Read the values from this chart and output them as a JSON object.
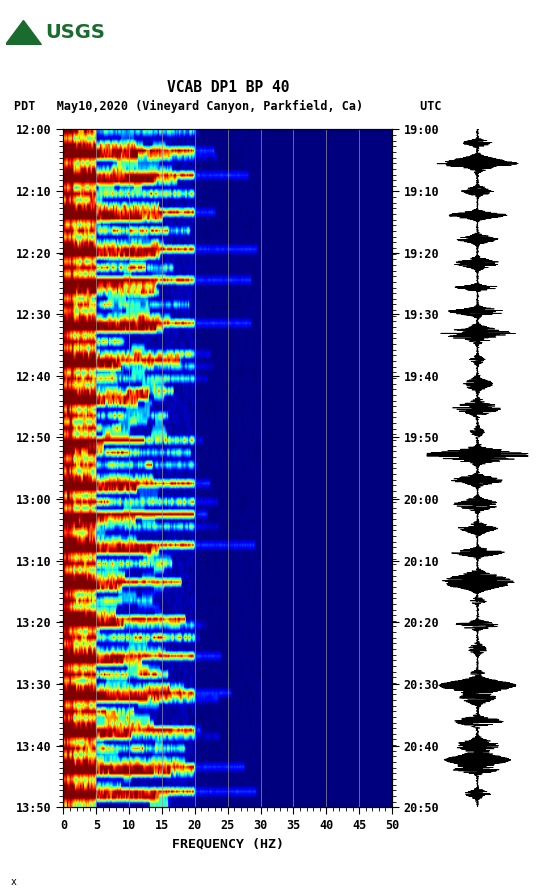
{
  "title_line1": "VCAB DP1 BP 40",
  "title_line2": "PDT   May10,2020 (Vineyard Canyon, Parkfield, Ca)        UTC",
  "xlabel": "FREQUENCY (HZ)",
  "freq_min": 0,
  "freq_max": 50,
  "ytick_pdt": [
    "12:00",
    "12:10",
    "12:20",
    "12:30",
    "12:40",
    "12:50",
    "13:00",
    "13:10",
    "13:20",
    "13:30",
    "13:40",
    "13:50"
  ],
  "ytick_utc": [
    "19:00",
    "19:10",
    "19:20",
    "19:30",
    "19:40",
    "19:50",
    "20:00",
    "20:10",
    "20:20",
    "20:30",
    "20:40",
    "20:50"
  ],
  "xticks": [
    0,
    5,
    10,
    15,
    20,
    25,
    30,
    35,
    40,
    45,
    50
  ],
  "vline_freqs": [
    5,
    10,
    15,
    20,
    25,
    30,
    35,
    40,
    45
  ],
  "background_color": "#ffffff",
  "colormap": "jet",
  "usgs_green": "#1a6b2e",
  "fig_width": 5.52,
  "fig_height": 8.92,
  "dpi": 100,
  "n_time": 110,
  "n_freq": 250
}
